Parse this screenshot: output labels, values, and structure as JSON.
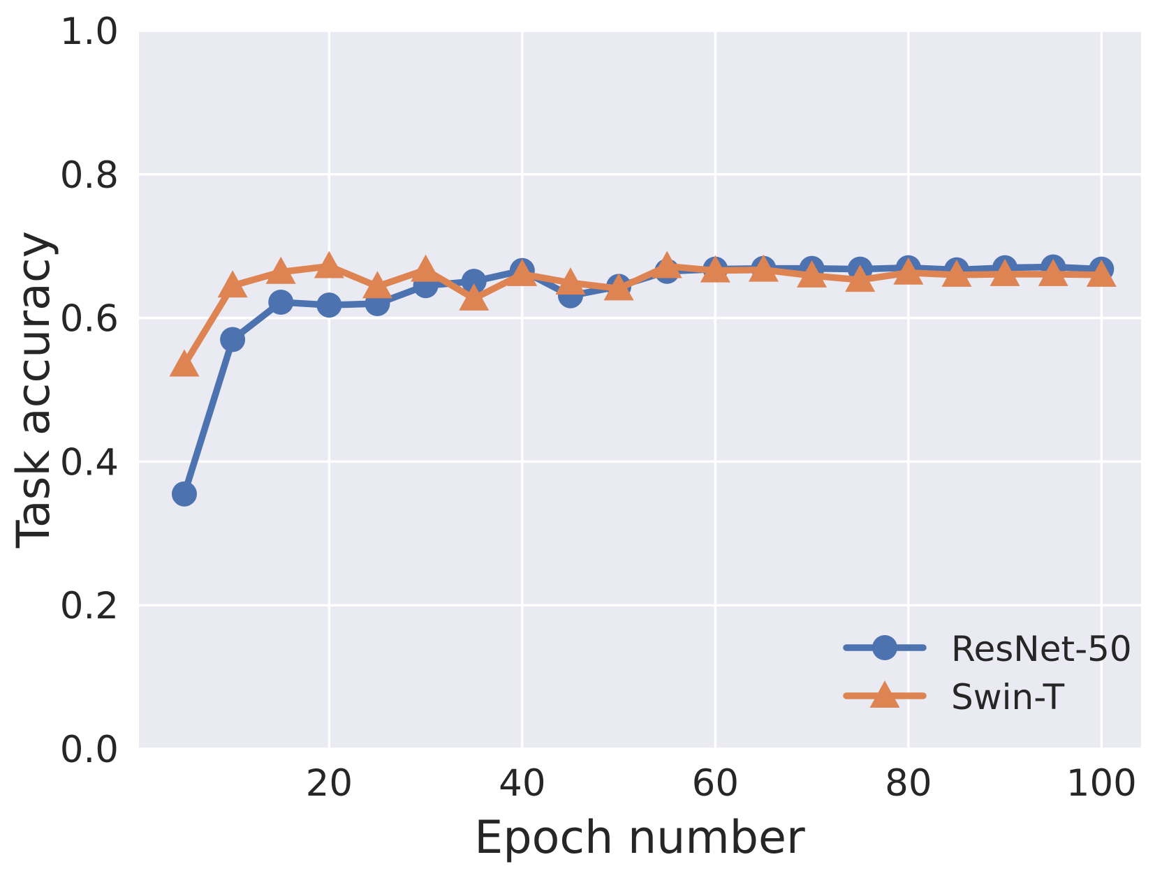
{
  "figure": {
    "background": "#ffffff",
    "plot_background": "#eaeaf2",
    "grid_color": "#ffffff",
    "text_color": "#262626"
  },
  "chart_data": {
    "type": "line",
    "title": "",
    "xlabel": "Epoch number",
    "ylabel": "Task accuracy",
    "x": [
      5,
      10,
      15,
      20,
      25,
      30,
      35,
      40,
      45,
      50,
      55,
      60,
      65,
      70,
      75,
      80,
      85,
      90,
      95,
      100
    ],
    "series": [
      {
        "name": "ResNet-50",
        "color": "#4c72b0",
        "marker": "circle",
        "values": [
          0.355,
          0.57,
          0.622,
          0.618,
          0.62,
          0.645,
          0.651,
          0.666,
          0.631,
          0.644,
          0.665,
          0.668,
          0.669,
          0.669,
          0.668,
          0.67,
          0.667,
          0.67,
          0.671,
          0.668
        ]
      },
      {
        "name": "Swin-T",
        "color": "#dd8452",
        "marker": "triangle-up",
        "values": [
          0.535,
          0.645,
          0.664,
          0.672,
          0.644,
          0.667,
          0.627,
          0.661,
          0.649,
          0.641,
          0.672,
          0.666,
          0.667,
          0.659,
          0.653,
          0.663,
          0.66,
          0.661,
          0.661,
          0.66
        ]
      }
    ],
    "xticks": [
      20,
      40,
      60,
      80,
      100
    ],
    "yticks": [
      0.0,
      0.2,
      0.4,
      0.6,
      0.8,
      1.0
    ],
    "xtick_labels": [
      "20",
      "40",
      "60",
      "80",
      "100"
    ],
    "ytick_labels": [
      "0.0",
      "0.2",
      "0.4",
      "0.6",
      "0.8",
      "1.0"
    ],
    "xlim": [
      0.3,
      104.1
    ],
    "ylim": [
      0,
      1
    ],
    "grid": true,
    "legend": {
      "position": "lower right",
      "entries": [
        "ResNet-50",
        "Swin-T"
      ]
    }
  }
}
